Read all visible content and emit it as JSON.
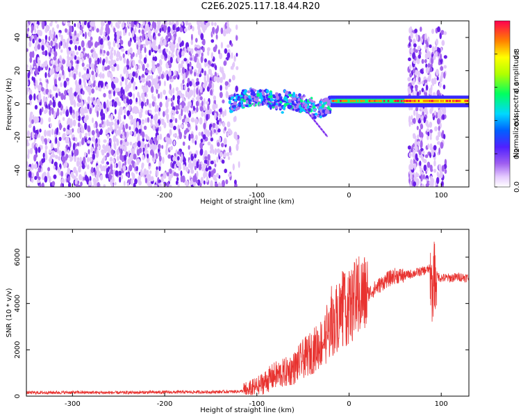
{
  "title": "C2E6.2025.117.18.44.R20",
  "colors": {
    "snr_line": "#e8322f",
    "colormap": [
      "#ffffff",
      "#e6ccff",
      "#b07af0",
      "#7a2cf0",
      "#3b2bff",
      "#00c8ff",
      "#00ff80",
      "#ffff00",
      "#ff8000",
      "#ff0040"
    ]
  },
  "chart_data": [
    {
      "type": "heatmap",
      "xlabel": "Height of straight line (km)",
      "ylabel": "Frequency (Hz)",
      "xlim": [
        -350,
        130
      ],
      "ylim": [
        -50,
        50
      ],
      "x_ticks": [
        -300,
        -200,
        -100,
        0,
        100
      ],
      "y_ticks": [
        -40,
        -20,
        0,
        20,
        40
      ],
      "colorbar": {
        "label": "Normalized spectral amplitude",
        "range": [
          0,
          1
        ],
        "ticks": [
          "0.0",
          "0.2",
          "0.4",
          "0.6",
          "0.8"
        ]
      },
      "regions": [
        {
          "name": "noise",
          "x": [
            -350,
            -115
          ],
          "freq": [
            -50,
            50
          ],
          "amplitude": 0.2
        },
        {
          "name": "signal-onset",
          "x": [
            -130,
            -20
          ],
          "freq": [
            -20,
            10
          ],
          "amplitude": 0.45
        },
        {
          "name": "carrier",
          "x": [
            -20,
            130
          ],
          "freq": [
            1,
            3
          ],
          "amplitude": 0.9
        },
        {
          "name": "interference",
          "x": [
            65,
            105
          ],
          "freq": [
            -50,
            45
          ],
          "amplitude": 0.2
        }
      ]
    },
    {
      "type": "line",
      "xlabel": "Height of straight line (km)",
      "ylabel": "SNR (10 * v/v)",
      "xlim": [
        -350,
        130
      ],
      "ylim": [
        0,
        7200
      ],
      "x_ticks": [
        -300,
        -200,
        -100,
        0,
        100
      ],
      "y_ticks": [
        0,
        2000,
        4000,
        6000
      ],
      "series": [
        {
          "x": [
            -350,
            -300,
            -250,
            -200,
            -150,
            -120,
            -110,
            -100,
            -90,
            -80,
            -70,
            -60,
            -50,
            -40,
            -30,
            -20,
            -10,
            0,
            10,
            20,
            30,
            40,
            50,
            60,
            70,
            80,
            88,
            90,
            92,
            95,
            100,
            110,
            120,
            130
          ],
          "y": [
            150,
            160,
            150,
            170,
            180,
            200,
            250,
            400,
            650,
            900,
            1000,
            1200,
            1600,
            1900,
            2300,
            2900,
            3600,
            3800,
            4300,
            4400,
            4700,
            5000,
            5200,
            5200,
            5300,
            5400,
            5500,
            4500,
            5200,
            5200,
            5100,
            5100,
            5150,
            5100
          ]
        }
      ]
    }
  ]
}
